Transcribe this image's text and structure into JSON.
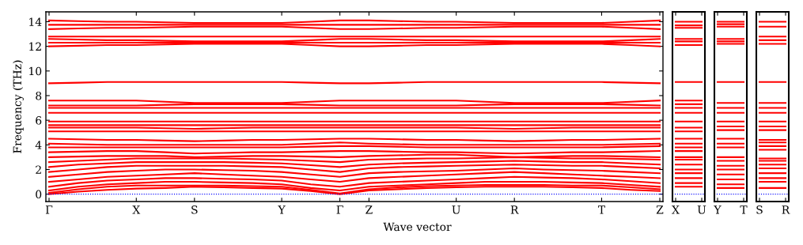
{
  "chart_data": [
    {
      "type": "line",
      "ylabel": "Frequency (THz)",
      "xlabel": "Wave vector",
      "categories": [
        "Γ",
        null,
        null,
        "X",
        null,
        "S",
        null,
        null,
        "Y",
        null,
        "Γ",
        "Z",
        null,
        null,
        "U",
        null,
        "R",
        null,
        null,
        "T",
        null,
        "Z"
      ],
      "ylim": [
        -0.6,
        14.8
      ],
      "yticks": [
        0,
        2,
        4,
        6,
        8,
        10,
        12,
        14
      ],
      "grid": false,
      "legend": false,
      "line_style": "solid",
      "marker": "none",
      "ref_lines": [
        {
          "axis": "y",
          "value": 0,
          "label": null,
          "color": "#0000ff",
          "line_style": "dotted"
        }
      ],
      "series": [
        {
          "color": "#ff0000",
          "values": [
            0,
            0.2,
            0.35,
            0.45,
            0.5,
            0.6,
            0.55,
            0.5,
            0.45,
            0.25,
            0,
            0.3,
            0.4,
            0.5,
            0.55,
            0.6,
            0.6,
            0.6,
            0.55,
            0.5,
            0.35,
            0.25
          ]
        },
        {
          "color": "#ff0000",
          "values": [
            0.1,
            0.4,
            0.6,
            0.7,
            0.7,
            0.7,
            0.7,
            0.65,
            0.6,
            0.35,
            0.05,
            0.4,
            0.55,
            0.65,
            0.7,
            0.75,
            0.75,
            0.75,
            0.7,
            0.7,
            0.55,
            0.4
          ]
        },
        {
          "color": "#ff0000",
          "values": [
            0.3,
            0.6,
            0.8,
            0.9,
            1.0,
            1.0,
            0.95,
            0.9,
            0.8,
            0.5,
            0.3,
            0.6,
            0.7,
            0.8,
            0.9,
            1.0,
            1.0,
            1.0,
            0.95,
            0.9,
            0.75,
            0.6
          ]
        },
        {
          "color": "#ff0000",
          "values": [
            0.6,
            0.9,
            1.1,
            1.2,
            1.3,
            1.3,
            1.25,
            1.2,
            1.1,
            0.8,
            0.6,
            0.9,
            1.0,
            1.1,
            1.2,
            1.3,
            1.4,
            1.35,
            1.3,
            1.2,
            1.05,
            0.9
          ]
        },
        {
          "color": "#ff0000",
          "values": [
            1.0,
            1.2,
            1.4,
            1.5,
            1.6,
            1.7,
            1.6,
            1.5,
            1.4,
            1.2,
            1.0,
            1.3,
            1.4,
            1.5,
            1.6,
            1.7,
            1.8,
            1.7,
            1.6,
            1.5,
            1.4,
            1.3
          ]
        },
        {
          "color": "#ff0000",
          "values": [
            1.4,
            1.6,
            1.8,
            1.9,
            2.0,
            2.0,
            1.95,
            1.9,
            1.8,
            1.6,
            1.4,
            1.7,
            1.8,
            1.85,
            1.9,
            2.0,
            2.1,
            2.0,
            1.95,
            1.9,
            1.8,
            1.7
          ]
        },
        {
          "color": "#ff0000",
          "values": [
            1.8,
            2.0,
            2.2,
            2.3,
            2.3,
            2.3,
            2.3,
            2.25,
            2.2,
            2.0,
            1.8,
            2.1,
            2.2,
            2.25,
            2.3,
            2.35,
            2.4,
            2.35,
            2.3,
            2.3,
            2.2,
            2.1
          ]
        },
        {
          "color": "#ff0000",
          "values": [
            2.2,
            2.4,
            2.5,
            2.6,
            2.6,
            2.6,
            2.6,
            2.55,
            2.5,
            2.35,
            2.2,
            2.4,
            2.5,
            2.55,
            2.6,
            2.65,
            2.7,
            2.65,
            2.6,
            2.6,
            2.5,
            2.4
          ]
        },
        {
          "color": "#ff0000",
          "values": [
            2.6,
            2.7,
            2.8,
            2.9,
            2.9,
            2.9,
            2.9,
            2.85,
            2.8,
            2.7,
            2.6,
            2.8,
            2.85,
            2.9,
            2.9,
            2.95,
            3.0,
            2.95,
            2.9,
            2.9,
            2.85,
            2.8
          ]
        },
        {
          "color": "#ff0000",
          "values": [
            3.0,
            3.05,
            3.1,
            3.1,
            3.1,
            3.0,
            3.05,
            3.1,
            3.1,
            3.05,
            3.0,
            3.1,
            3.15,
            3.2,
            3.2,
            3.1,
            3.0,
            3.05,
            3.1,
            3.1,
            3.05,
            3.0
          ]
        },
        {
          "color": "#ff0000",
          "values": [
            3.4,
            3.45,
            3.5,
            3.5,
            3.4,
            3.3,
            3.35,
            3.4,
            3.4,
            3.45,
            3.5,
            3.5,
            3.45,
            3.4,
            3.4,
            3.35,
            3.3,
            3.35,
            3.4,
            3.4,
            3.45,
            3.5
          ]
        },
        {
          "color": "#ff0000",
          "values": [
            3.8,
            3.8,
            3.8,
            3.8,
            3.8,
            3.8,
            3.8,
            3.8,
            3.8,
            3.85,
            3.9,
            3.9,
            3.85,
            3.8,
            3.8,
            3.8,
            3.8,
            3.8,
            3.8,
            3.8,
            3.85,
            3.9
          ]
        },
        {
          "color": "#ff0000",
          "values": [
            4.1,
            4.05,
            4.0,
            4.0,
            4.0,
            4.0,
            4.0,
            4.0,
            4.0,
            4.1,
            4.2,
            4.1,
            4.05,
            4.0,
            4.0,
            4.0,
            4.0,
            4.0,
            4.0,
            4.0,
            4.05,
            4.1
          ]
        },
        {
          "color": "#ff0000",
          "values": [
            4.5,
            4.45,
            4.4,
            4.4,
            4.35,
            4.3,
            4.35,
            4.4,
            4.4,
            4.45,
            4.5,
            4.5,
            4.45,
            4.4,
            4.4,
            4.35,
            4.3,
            4.35,
            4.4,
            4.4,
            4.45,
            4.5
          ]
        },
        {
          "color": "#ff0000",
          "values": [
            5.1,
            5.1,
            5.1,
            5.1,
            5.1,
            5.1,
            5.1,
            5.1,
            5.1,
            5.1,
            5.1,
            5.1,
            5.1,
            5.1,
            5.1,
            5.1,
            5.1,
            5.1,
            5.1,
            5.1,
            5.1,
            5.1
          ]
        },
        {
          "color": "#ff0000",
          "values": [
            5.4,
            5.4,
            5.4,
            5.4,
            5.35,
            5.3,
            5.35,
            5.4,
            5.4,
            5.4,
            5.4,
            5.4,
            5.4,
            5.4,
            5.4,
            5.35,
            5.3,
            5.35,
            5.4,
            5.4,
            5.4,
            5.4
          ]
        },
        {
          "color": "#ff0000",
          "values": [
            5.6,
            5.6,
            5.6,
            5.6,
            5.6,
            5.6,
            5.6,
            5.6,
            5.6,
            5.6,
            5.6,
            5.6,
            5.6,
            5.6,
            5.6,
            5.6,
            5.6,
            5.6,
            5.6,
            5.6,
            5.6,
            5.6
          ]
        },
        {
          "color": "#ff0000",
          "values": [
            5.9,
            5.9,
            5.9,
            5.9,
            5.9,
            5.9,
            5.9,
            5.9,
            5.9,
            5.9,
            5.9,
            5.9,
            5.9,
            5.9,
            5.9,
            5.9,
            5.9,
            5.9,
            5.9,
            5.9,
            5.9,
            5.9
          ]
        },
        {
          "color": "#ff0000",
          "values": [
            6.6,
            6.6,
            6.6,
            6.6,
            6.6,
            6.6,
            6.6,
            6.6,
            6.6,
            6.6,
            6.6,
            6.6,
            6.6,
            6.6,
            6.6,
            6.6,
            6.6,
            6.6,
            6.6,
            6.6,
            6.6,
            6.6
          ]
        },
        {
          "color": "#ff0000",
          "values": [
            7.0,
            7.0,
            7.0,
            7.0,
            7.0,
            7.0,
            7.0,
            7.0,
            7.0,
            7.0,
            7.0,
            7.0,
            7.0,
            7.0,
            7.0,
            7.0,
            7.0,
            7.0,
            7.0,
            7.0,
            7.0,
            7.0
          ]
        },
        {
          "color": "#ff0000",
          "values": [
            7.2,
            7.2,
            7.2,
            7.2,
            7.25,
            7.3,
            7.3,
            7.3,
            7.3,
            7.25,
            7.2,
            7.2,
            7.2,
            7.2,
            7.2,
            7.25,
            7.3,
            7.3,
            7.3,
            7.3,
            7.25,
            7.2
          ]
        },
        {
          "color": "#ff0000",
          "values": [
            7.6,
            7.6,
            7.6,
            7.6,
            7.5,
            7.4,
            7.4,
            7.4,
            7.4,
            7.5,
            7.6,
            7.6,
            7.6,
            7.6,
            7.6,
            7.5,
            7.4,
            7.4,
            7.4,
            7.4,
            7.5,
            7.6
          ]
        },
        {
          "color": "#ff0000",
          "values": [
            9.0,
            9.05,
            9.1,
            9.1,
            9.1,
            9.1,
            9.1,
            9.1,
            9.1,
            9.05,
            9.0,
            9.0,
            9.05,
            9.1,
            9.1,
            9.1,
            9.1,
            9.1,
            9.1,
            9.1,
            9.05,
            9.0
          ]
        },
        {
          "color": "#ff0000",
          "values": [
            12.0,
            12.05,
            12.1,
            12.1,
            12.15,
            12.2,
            12.2,
            12.2,
            12.2,
            12.1,
            12.0,
            12.0,
            12.05,
            12.1,
            12.1,
            12.15,
            12.2,
            12.2,
            12.2,
            12.2,
            12.1,
            12.0
          ]
        },
        {
          "color": "#ff0000",
          "values": [
            12.3,
            12.3,
            12.3,
            12.3,
            12.3,
            12.3,
            12.3,
            12.3,
            12.3,
            12.3,
            12.3,
            12.3,
            12.3,
            12.3,
            12.3,
            12.3,
            12.3,
            12.3,
            12.3,
            12.3,
            12.3,
            12.3
          ]
        },
        {
          "color": "#ff0000",
          "values": [
            12.6,
            12.55,
            12.5,
            12.5,
            12.45,
            12.4,
            12.4,
            12.4,
            12.4,
            12.5,
            12.6,
            12.6,
            12.55,
            12.5,
            12.5,
            12.45,
            12.4,
            12.4,
            12.4,
            12.4,
            12.5,
            12.6
          ]
        },
        {
          "color": "#ff0000",
          "values": [
            12.8,
            12.8,
            12.8,
            12.8,
            12.8,
            12.8,
            12.8,
            12.8,
            12.8,
            12.8,
            12.8,
            12.8,
            12.8,
            12.8,
            12.8,
            12.8,
            12.8,
            12.8,
            12.8,
            12.8,
            12.8,
            12.8
          ]
        },
        {
          "color": "#ff0000",
          "values": [
            13.4,
            13.45,
            13.5,
            13.5,
            13.55,
            13.6,
            13.6,
            13.6,
            13.6,
            13.5,
            13.4,
            13.4,
            13.45,
            13.5,
            13.5,
            13.55,
            13.6,
            13.6,
            13.6,
            13.6,
            13.5,
            13.4
          ]
        },
        {
          "color": "#ff0000",
          "values": [
            13.75,
            13.75,
            13.75,
            13.75,
            13.75,
            13.75,
            13.75,
            13.75,
            13.75,
            13.75,
            13.75,
            13.75,
            13.75,
            13.75,
            13.75,
            13.75,
            13.75,
            13.75,
            13.75,
            13.75,
            13.75,
            13.75
          ]
        },
        {
          "color": "#ff0000",
          "values": [
            14.1,
            14.05,
            14.0,
            14.0,
            13.95,
            13.9,
            13.9,
            13.9,
            13.9,
            14.0,
            14.1,
            14.1,
            14.05,
            14.0,
            14.0,
            13.95,
            13.9,
            13.9,
            13.9,
            13.9,
            14.0,
            14.1
          ]
        }
      ]
    },
    {
      "type": "line",
      "categories": [
        "X",
        "U"
      ],
      "ylim": [
        -0.6,
        14.8
      ],
      "tick_labels": "x",
      "grid": false,
      "legend": false,
      "line_style": "solid",
      "marker": "none",
      "ref_lines": [
        {
          "axis": "y",
          "value": 0,
          "label": null,
          "color": "#0000ff",
          "line_style": "dotted"
        }
      ],
      "series": [
        {
          "color": "#ff0000",
          "values": [
            0.6,
            0.6
          ]
        },
        {
          "color": "#ff0000",
          "values": [
            0.9,
            0.9
          ]
        },
        {
          "color": "#ff0000",
          "values": [
            1.3,
            1.3
          ]
        },
        {
          "color": "#ff0000",
          "values": [
            1.7,
            1.7
          ]
        },
        {
          "color": "#ff0000",
          "values": [
            2.0,
            2.0
          ]
        },
        {
          "color": "#ff0000",
          "values": [
            2.4,
            2.4
          ]
        },
        {
          "color": "#ff0000",
          "values": [
            2.8,
            2.8
          ]
        },
        {
          "color": "#ff0000",
          "values": [
            3.0,
            3.0
          ]
        },
        {
          "color": "#ff0000",
          "values": [
            3.5,
            3.5
          ]
        },
        {
          "color": "#ff0000",
          "values": [
            3.8,
            3.8
          ]
        },
        {
          "color": "#ff0000",
          "values": [
            4.1,
            4.1
          ]
        },
        {
          "color": "#ff0000",
          "values": [
            4.5,
            4.5
          ]
        },
        {
          "color": "#ff0000",
          "values": [
            5.1,
            5.1
          ]
        },
        {
          "color": "#ff0000",
          "values": [
            5.4,
            5.4
          ]
        },
        {
          "color": "#ff0000",
          "values": [
            5.9,
            5.9
          ]
        },
        {
          "color": "#ff0000",
          "values": [
            6.6,
            6.6
          ]
        },
        {
          "color": "#ff0000",
          "values": [
            7.0,
            7.0
          ]
        },
        {
          "color": "#ff0000",
          "values": [
            7.3,
            7.3
          ]
        },
        {
          "color": "#ff0000",
          "values": [
            7.6,
            7.6
          ]
        },
        {
          "color": "#ff0000",
          "values": [
            9.1,
            9.1
          ]
        },
        {
          "color": "#ff0000",
          "values": [
            12.1,
            12.1
          ]
        },
        {
          "color": "#ff0000",
          "values": [
            12.4,
            12.4
          ]
        },
        {
          "color": "#ff0000",
          "values": [
            12.6,
            12.6
          ]
        },
        {
          "color": "#ff0000",
          "values": [
            13.5,
            13.5
          ]
        },
        {
          "color": "#ff0000",
          "values": [
            13.7,
            13.7
          ]
        },
        {
          "color": "#ff0000",
          "values": [
            14.0,
            14.0
          ]
        }
      ]
    },
    {
      "type": "line",
      "categories": [
        "Y",
        "T"
      ],
      "ylim": [
        -0.6,
        14.8
      ],
      "tick_labels": "x",
      "grid": false,
      "legend": false,
      "line_style": "solid",
      "marker": "none",
      "ref_lines": [
        {
          "axis": "y",
          "value": 0,
          "label": null,
          "color": "#0000ff",
          "line_style": "dotted"
        }
      ],
      "series": [
        {
          "color": "#ff0000",
          "values": [
            0.5,
            0.5
          ]
        },
        {
          "color": "#ff0000",
          "values": [
            0.8,
            0.8
          ]
        },
        {
          "color": "#ff0000",
          "values": [
            1.2,
            1.2
          ]
        },
        {
          "color": "#ff0000",
          "values": [
            1.6,
            1.6
          ]
        },
        {
          "color": "#ff0000",
          "values": [
            2.0,
            2.0
          ]
        },
        {
          "color": "#ff0000",
          "values": [
            2.3,
            2.3
          ]
        },
        {
          "color": "#ff0000",
          "values": [
            2.7,
            2.7
          ]
        },
        {
          "color": "#ff0000",
          "values": [
            3.0,
            3.0
          ]
        },
        {
          "color": "#ff0000",
          "values": [
            3.8,
            3.8
          ]
        },
        {
          "color": "#ff0000",
          "values": [
            4.1,
            4.1
          ]
        },
        {
          "color": "#ff0000",
          "values": [
            4.5,
            4.5
          ]
        },
        {
          "color": "#ff0000",
          "values": [
            5.2,
            5.2
          ]
        },
        {
          "color": "#ff0000",
          "values": [
            5.5,
            5.5
          ]
        },
        {
          "color": "#ff0000",
          "values": [
            5.9,
            5.9
          ]
        },
        {
          "color": "#ff0000",
          "values": [
            6.6,
            6.6
          ]
        },
        {
          "color": "#ff0000",
          "values": [
            7.0,
            7.0
          ]
        },
        {
          "color": "#ff0000",
          "values": [
            7.4,
            7.4
          ]
        },
        {
          "color": "#ff0000",
          "values": [
            9.1,
            9.1
          ]
        },
        {
          "color": "#ff0000",
          "values": [
            12.2,
            12.2
          ]
        },
        {
          "color": "#ff0000",
          "values": [
            12.4,
            12.4
          ]
        },
        {
          "color": "#ff0000",
          "values": [
            12.6,
            12.6
          ]
        },
        {
          "color": "#ff0000",
          "values": [
            13.6,
            13.6
          ]
        },
        {
          "color": "#ff0000",
          "values": [
            13.8,
            13.8
          ]
        },
        {
          "color": "#ff0000",
          "values": [
            14.0,
            14.0
          ]
        }
      ]
    },
    {
      "type": "line",
      "categories": [
        "S",
        "R"
      ],
      "ylim": [
        -0.6,
        14.8
      ],
      "tick_labels": "x",
      "grid": false,
      "legend": false,
      "line_style": "solid",
      "marker": "none",
      "ref_lines": [
        {
          "axis": "y",
          "value": 0,
          "label": null,
          "color": "#0000ff",
          "line_style": "dotted"
        }
      ],
      "series": [
        {
          "color": "#ff0000",
          "values": [
            0.5,
            0.5
          ]
        },
        {
          "color": "#ff0000",
          "values": [
            1.0,
            1.0
          ]
        },
        {
          "color": "#ff0000",
          "values": [
            1.3,
            1.3
          ]
        },
        {
          "color": "#ff0000",
          "values": [
            1.7,
            1.7
          ]
        },
        {
          "color": "#ff0000",
          "values": [
            2.1,
            2.1
          ]
        },
        {
          "color": "#ff0000",
          "values": [
            2.4,
            2.4
          ]
        },
        {
          "color": "#ff0000",
          "values": [
            2.7,
            2.7
          ]
        },
        {
          "color": "#ff0000",
          "values": [
            2.9,
            2.9
          ]
        },
        {
          "color": "#ff0000",
          "values": [
            3.6,
            3.6
          ]
        },
        {
          "color": "#ff0000",
          "values": [
            3.9,
            3.9
          ]
        },
        {
          "color": "#ff0000",
          "values": [
            4.2,
            4.2
          ]
        },
        {
          "color": "#ff0000",
          "values": [
            4.4,
            4.4
          ]
        },
        {
          "color": "#ff0000",
          "values": [
            5.2,
            5.2
          ]
        },
        {
          "color": "#ff0000",
          "values": [
            5.5,
            5.5
          ]
        },
        {
          "color": "#ff0000",
          "values": [
            5.9,
            5.9
          ]
        },
        {
          "color": "#ff0000",
          "values": [
            6.6,
            6.6
          ]
        },
        {
          "color": "#ff0000",
          "values": [
            7.0,
            7.0
          ]
        },
        {
          "color": "#ff0000",
          "values": [
            7.4,
            7.4
          ]
        },
        {
          "color": "#ff0000",
          "values": [
            9.1,
            9.1
          ]
        },
        {
          "color": "#ff0000",
          "values": [
            12.2,
            12.2
          ]
        },
        {
          "color": "#ff0000",
          "values": [
            12.5,
            12.5
          ]
        },
        {
          "color": "#ff0000",
          "values": [
            12.8,
            12.8
          ]
        },
        {
          "color": "#ff0000",
          "values": [
            13.6,
            13.6
          ]
        },
        {
          "color": "#ff0000",
          "values": [
            14.0,
            14.0
          ]
        }
      ]
    }
  ]
}
